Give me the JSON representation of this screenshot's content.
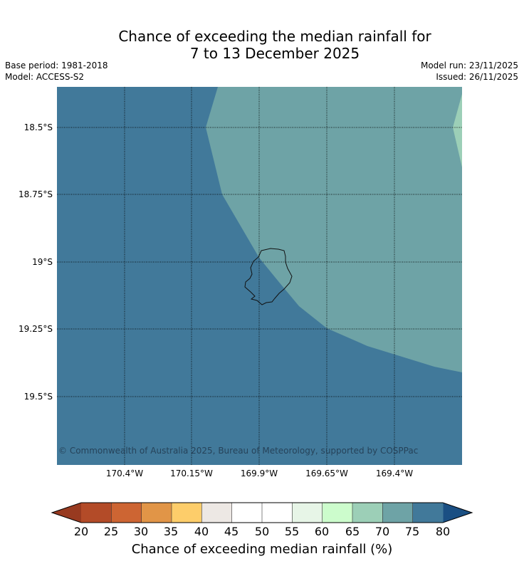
{
  "title": {
    "line1": "Chance of exceeding the median rainfall for",
    "line2": "7 to 13 December 2025"
  },
  "meta": {
    "base_period": "Base period: 1981-2018",
    "model": "Model: ACCESS-S2",
    "model_run": "Model run: 23/11/2025",
    "issued": "Issued: 26/11/2025"
  },
  "map": {
    "lat_labels": [
      "18.5°S",
      "18.75°S",
      "19°S",
      "19.25°S",
      "19.5°S"
    ],
    "lon_labels": [
      "170.4°W",
      "170.15°W",
      "169.9°W",
      "169.65°W",
      "169.4°W"
    ],
    "copyright": "© Commonwealth of Australia 2025, Bureau of Meteorology, supported by COSPPac",
    "colors": {
      "band_75_80": "#41799a",
      "band_70_75": "#6ea3a6",
      "band_65_70": "#9ccfb7",
      "coastline": "#111111"
    }
  },
  "colorbar": {
    "title": "Chance of exceeding median rainfall (%)",
    "ticks": [
      "20",
      "25",
      "30",
      "35",
      "40",
      "45",
      "50",
      "55",
      "60",
      "65",
      "70",
      "75",
      "80"
    ],
    "colors": [
      "#b34b28",
      "#cd6533",
      "#e19547",
      "#fdcd6a",
      "#ede8e4",
      "#ffffff",
      "#ffffff",
      "#e7f5e7",
      "#ccfccc",
      "#9ccfb7",
      "#6ea3a6",
      "#41799a"
    ],
    "under_color": "#983a20",
    "over_color": "#1a4f83"
  }
}
